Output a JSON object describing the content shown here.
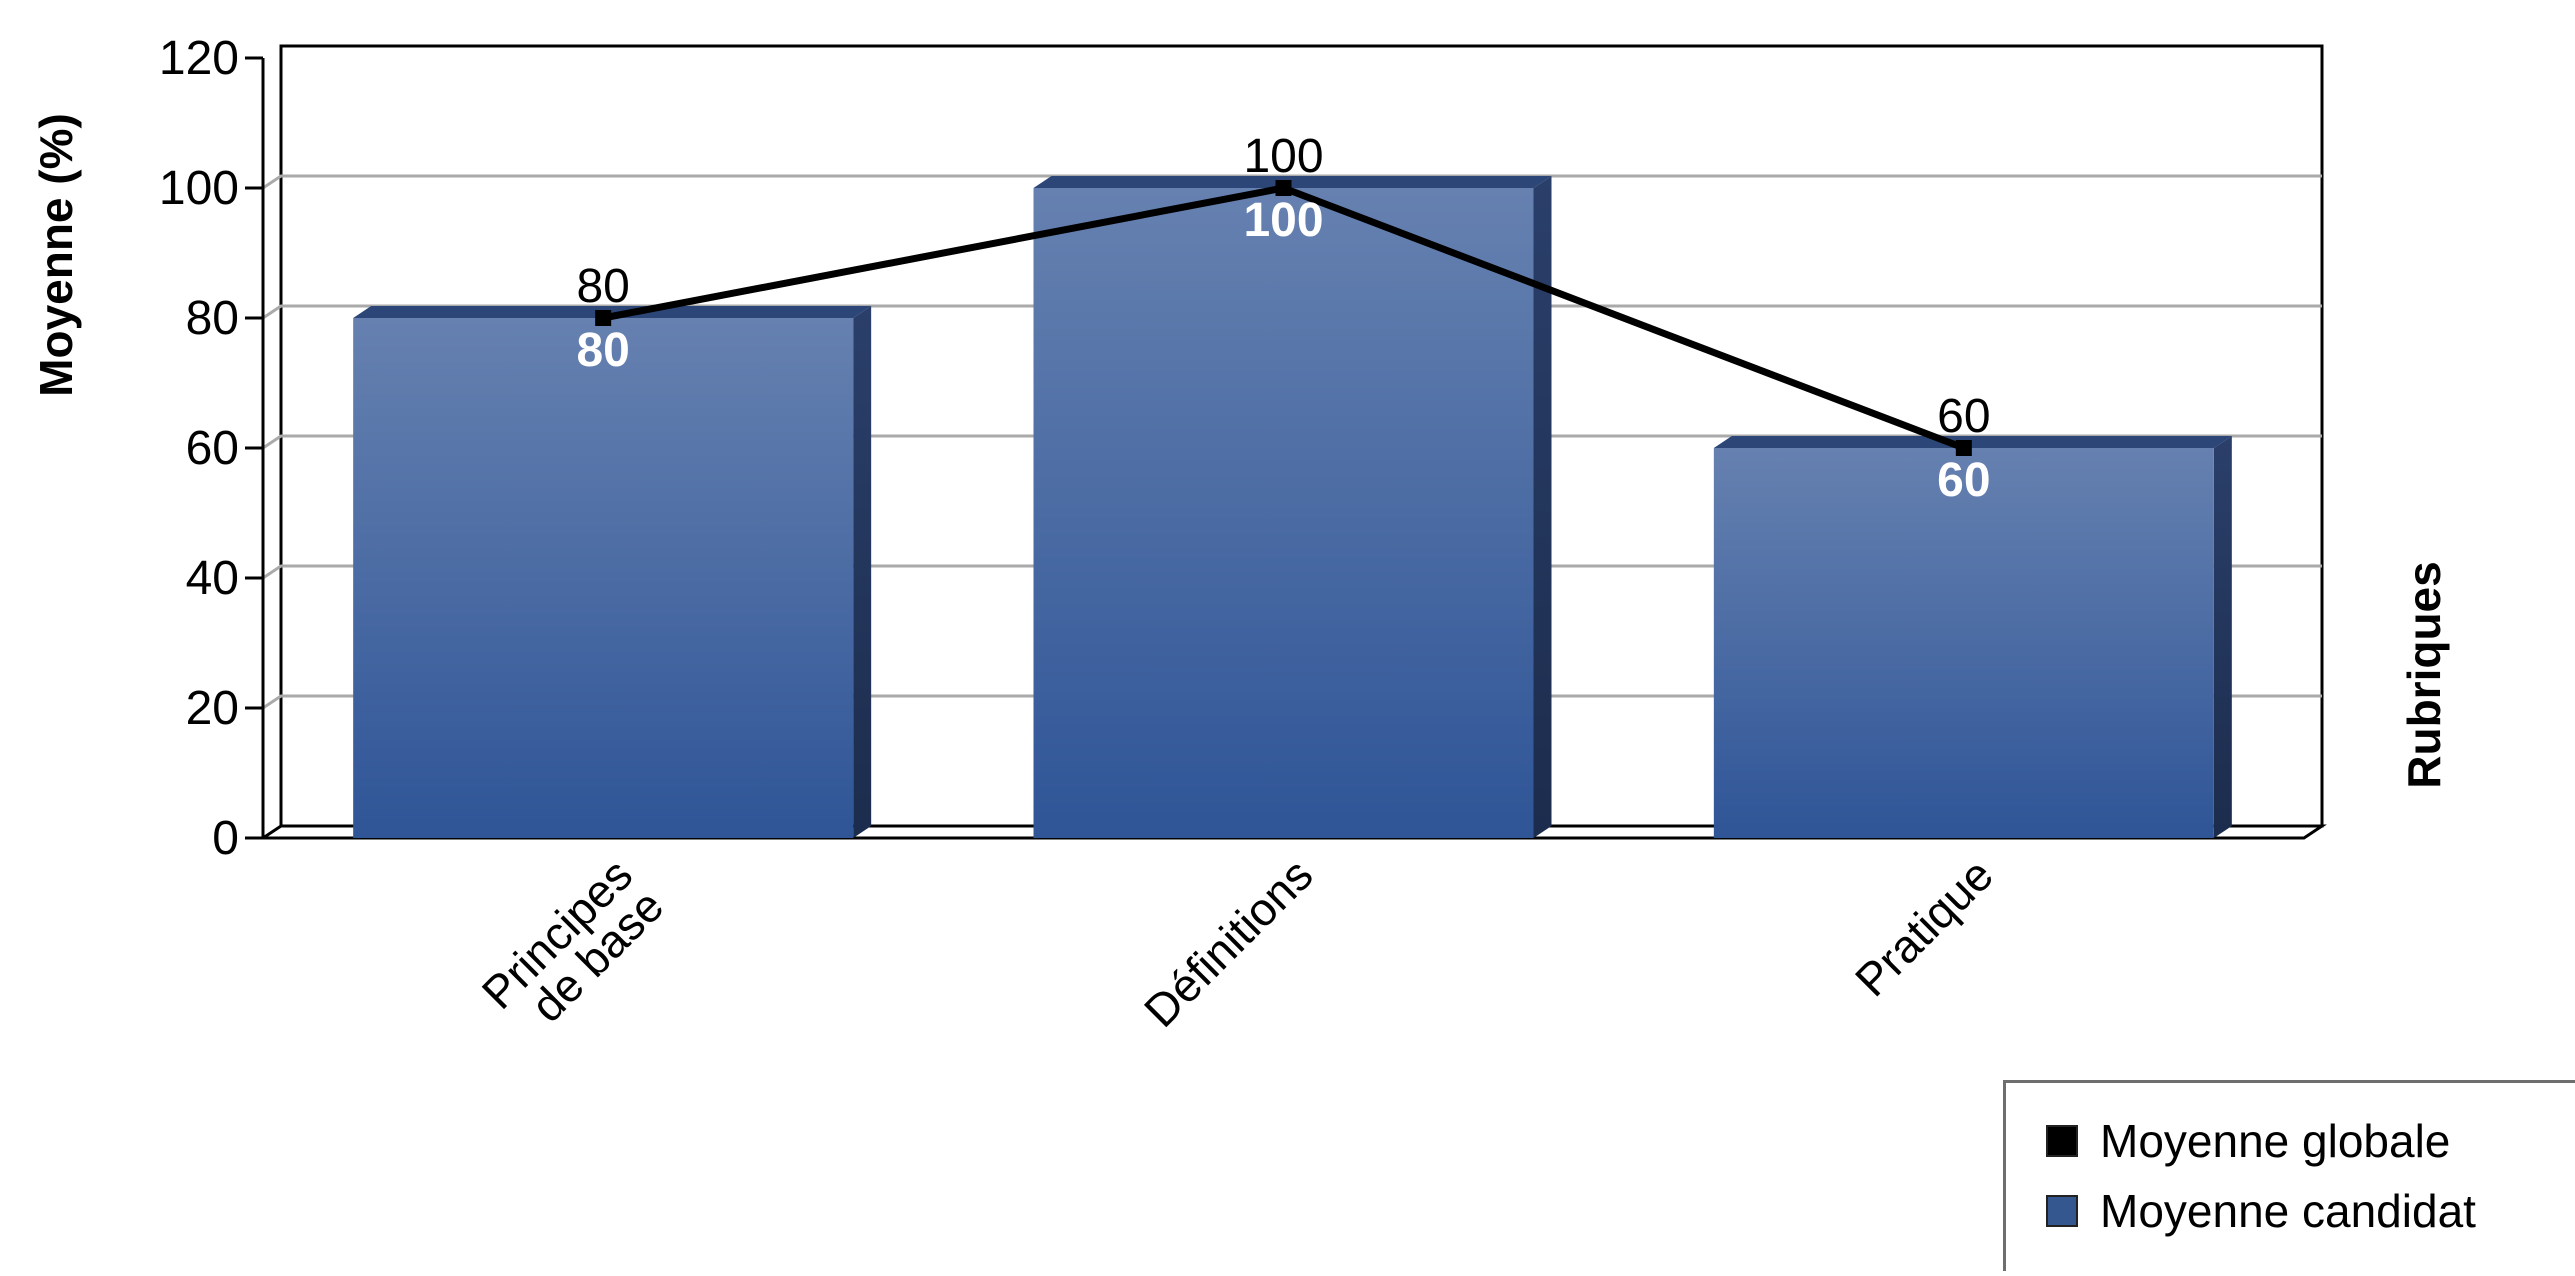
{
  "chart_data": {
    "type": "bar",
    "categories": [
      "Principes de base",
      "Définitions",
      "Pratique"
    ],
    "category_lines": [
      [
        "Principes",
        "de base"
      ],
      [
        "Définitions"
      ],
      [
        "Pratique"
      ]
    ],
    "series": [
      {
        "name": "Moyenne candidat",
        "type": "bar",
        "values": [
          80,
          100,
          60
        ],
        "color": "#35578f"
      },
      {
        "name": "Moyenne globale",
        "type": "line",
        "values": [
          80,
          100,
          60
        ],
        "color": "#000000"
      }
    ],
    "ylabel": "Moyenne (%)",
    "xlabel": "Rubriques",
    "ylim": [
      0,
      120
    ],
    "yticks": [
      0,
      20,
      40,
      60,
      80,
      100,
      120
    ],
    "grid": true,
    "legend_position": "bottom-right"
  },
  "legend": [
    {
      "label": "Moyenne globale",
      "color": "#000000"
    },
    {
      "label": "Moyenne candidat",
      "color": "#35578f"
    }
  ]
}
